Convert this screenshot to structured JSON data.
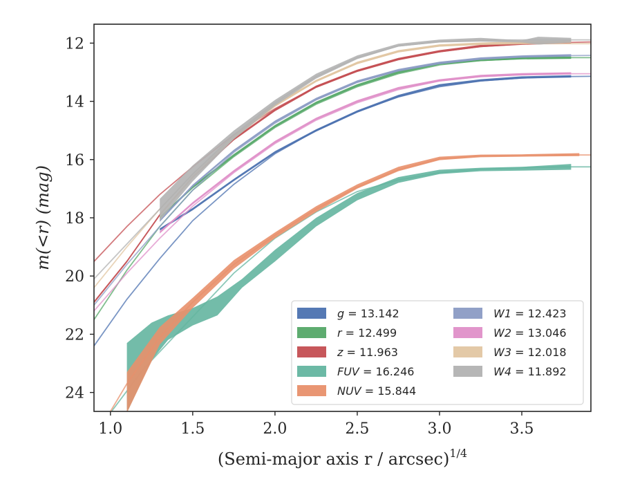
{
  "chart_data": {
    "type": "line",
    "xlabel": "(Semi-major axis r / arcsec)",
    "xlabel_superscript": "1/4",
    "ylabel": "m(<r) (mag)",
    "xlim": [
      0.9,
      3.92
    ],
    "ylim": [
      24.65,
      11.35
    ],
    "y_inverted": true,
    "grid": false,
    "legend_position": "lower-right",
    "x_ticks": [
      "1.0",
      "1.5",
      "2.0",
      "2.5",
      "3.0",
      "3.5"
    ],
    "x_tick_values": [
      1.0,
      1.5,
      2.0,
      2.5,
      3.0,
      3.5
    ],
    "y_ticks": [
      "12",
      "14",
      "16",
      "18",
      "20",
      "22",
      "24"
    ],
    "y_tick_values": [
      12,
      14,
      16,
      18,
      20,
      22,
      24
    ],
    "series": [
      {
        "name": "g",
        "label": "g = 13.142",
        "color": "#4c72b0",
        "fit": [
          [
            0.9,
            22.4
          ],
          [
            1.1,
            20.8
          ],
          [
            1.3,
            19.4
          ],
          [
            1.5,
            18.1
          ],
          [
            1.75,
            16.85
          ],
          [
            2.0,
            15.8
          ],
          [
            2.25,
            15.0
          ],
          [
            2.5,
            14.35
          ],
          [
            2.75,
            13.85
          ],
          [
            3.0,
            13.5
          ],
          [
            3.25,
            13.3
          ],
          [
            3.5,
            13.2
          ],
          [
            3.75,
            13.15
          ],
          [
            3.92,
            13.14
          ]
        ],
        "data": [
          [
            1.3,
            18.4
          ],
          [
            1.5,
            17.7
          ],
          [
            1.75,
            16.7
          ],
          [
            2.0,
            15.75
          ],
          [
            2.25,
            15.0
          ],
          [
            2.5,
            14.35
          ],
          [
            2.75,
            13.82
          ],
          [
            3.0,
            13.45
          ],
          [
            3.25,
            13.28
          ],
          [
            3.5,
            13.18
          ],
          [
            3.8,
            13.14
          ]
        ],
        "data_width": 0.08
      },
      {
        "name": "r",
        "label": "r = 12.499",
        "color": "#55a868",
        "fit": [
          [
            0.9,
            21.5
          ],
          [
            1.1,
            19.8
          ],
          [
            1.3,
            18.3
          ],
          [
            1.5,
            17.05
          ],
          [
            1.75,
            15.9
          ],
          [
            2.0,
            14.9
          ],
          [
            2.25,
            14.1
          ],
          [
            2.5,
            13.5
          ],
          [
            2.75,
            13.05
          ],
          [
            3.0,
            12.75
          ],
          [
            3.25,
            12.6
          ],
          [
            3.5,
            12.53
          ],
          [
            3.75,
            12.5
          ],
          [
            3.92,
            12.5
          ]
        ],
        "data": [
          [
            1.3,
            18.0
          ],
          [
            1.5,
            16.95
          ],
          [
            1.75,
            15.85
          ],
          [
            2.0,
            14.85
          ],
          [
            2.25,
            14.05
          ],
          [
            2.5,
            13.45
          ],
          [
            2.75,
            13.0
          ],
          [
            3.0,
            12.7
          ],
          [
            3.25,
            12.58
          ],
          [
            3.5,
            12.52
          ],
          [
            3.8,
            12.5
          ]
        ],
        "data_width": 0.08
      },
      {
        "name": "z",
        "label": "z = 11.963",
        "color": "#c44e52",
        "fit": [
          [
            0.9,
            19.5
          ],
          [
            1.1,
            18.3
          ],
          [
            1.3,
            17.2
          ],
          [
            1.5,
            16.25
          ],
          [
            1.75,
            15.15
          ],
          [
            2.0,
            14.25
          ],
          [
            2.25,
            13.5
          ],
          [
            2.5,
            12.95
          ],
          [
            2.75,
            12.55
          ],
          [
            3.0,
            12.3
          ],
          [
            3.25,
            12.12
          ],
          [
            3.5,
            12.03
          ],
          [
            3.75,
            11.98
          ],
          [
            3.92,
            11.96
          ]
        ],
        "data": [
          [
            0.9,
            20.9
          ],
          [
            1.1,
            19.5
          ],
          [
            1.3,
            17.9
          ],
          [
            1.5,
            16.6
          ],
          [
            1.75,
            15.3
          ],
          [
            2.0,
            14.3
          ],
          [
            2.25,
            13.5
          ],
          [
            2.5,
            12.95
          ],
          [
            2.75,
            12.55
          ],
          [
            3.0,
            12.28
          ],
          [
            3.25,
            12.1
          ],
          [
            3.5,
            12.02
          ],
          [
            3.8,
            11.97
          ]
        ],
        "data_width": 0.08
      },
      {
        "name": "FUV",
        "label": "FUV = 16.246",
        "color": "#64b5a0",
        "fit": [
          [
            1.0,
            24.7
          ],
          [
            1.2,
            23.2
          ],
          [
            1.5,
            21.4
          ],
          [
            1.75,
            19.9
          ],
          [
            2.0,
            18.7
          ],
          [
            2.25,
            17.8
          ],
          [
            2.5,
            17.1
          ],
          [
            2.75,
            16.7
          ],
          [
            3.0,
            16.45
          ],
          [
            3.25,
            16.33
          ],
          [
            3.5,
            16.28
          ],
          [
            3.75,
            16.25
          ],
          [
            3.92,
            16.25
          ]
        ],
        "band_upper": [
          [
            1.1,
            22.3
          ],
          [
            1.25,
            21.6
          ],
          [
            1.35,
            21.35
          ],
          [
            1.5,
            21.1
          ],
          [
            1.65,
            20.7
          ],
          [
            1.8,
            20.1
          ],
          [
            2.0,
            19.1
          ],
          [
            2.25,
            18.0
          ],
          [
            2.5,
            17.15
          ],
          [
            2.75,
            16.6
          ],
          [
            3.0,
            16.35
          ],
          [
            3.25,
            16.28
          ],
          [
            3.5,
            16.25
          ],
          [
            3.8,
            16.15
          ]
        ],
        "band_lower": [
          [
            1.1,
            24.7
          ],
          [
            1.25,
            22.9
          ],
          [
            1.35,
            22.2
          ],
          [
            1.5,
            21.7
          ],
          [
            1.65,
            21.35
          ],
          [
            1.8,
            20.4
          ],
          [
            2.0,
            19.5
          ],
          [
            2.25,
            18.3
          ],
          [
            2.5,
            17.4
          ],
          [
            2.75,
            16.8
          ],
          [
            3.0,
            16.5
          ],
          [
            3.25,
            16.4
          ],
          [
            3.5,
            16.38
          ],
          [
            3.8,
            16.35
          ]
        ]
      },
      {
        "name": "NUV",
        "label": "NUV = 15.844",
        "color": "#e8906c",
        "fit": [
          [
            0.9,
            25.6
          ],
          [
            1.1,
            23.7
          ],
          [
            1.3,
            22.1
          ],
          [
            1.5,
            20.9
          ],
          [
            1.75,
            19.6
          ],
          [
            2.0,
            18.6
          ],
          [
            2.25,
            17.7
          ],
          [
            2.5,
            16.95
          ],
          [
            2.75,
            16.35
          ],
          [
            3.0,
            15.98
          ],
          [
            3.25,
            15.88
          ],
          [
            3.5,
            15.85
          ],
          [
            3.75,
            15.84
          ],
          [
            3.92,
            15.84
          ]
        ],
        "band_upper": [
          [
            1.1,
            23.3
          ],
          [
            1.3,
            21.75
          ],
          [
            1.5,
            20.75
          ],
          [
            1.75,
            19.45
          ],
          [
            2.0,
            18.5
          ],
          [
            2.25,
            17.6
          ],
          [
            2.5,
            16.85
          ],
          [
            2.75,
            16.25
          ],
          [
            3.0,
            15.9
          ],
          [
            3.25,
            15.83
          ],
          [
            3.5,
            15.82
          ],
          [
            3.85,
            15.78
          ]
        ],
        "band_lower": [
          [
            1.1,
            24.7
          ],
          [
            1.3,
            22.35
          ],
          [
            1.5,
            21.1
          ],
          [
            1.75,
            19.75
          ],
          [
            2.0,
            18.7
          ],
          [
            2.25,
            17.8
          ],
          [
            2.5,
            17.0
          ],
          [
            2.75,
            16.4
          ],
          [
            3.0,
            16.02
          ],
          [
            3.25,
            15.92
          ],
          [
            3.5,
            15.9
          ],
          [
            3.85,
            15.88
          ]
        ]
      },
      {
        "name": "W1",
        "label": "W1 = 12.423",
        "color": "#8b9bc4",
        "fit": [
          [
            0.9,
            21.0
          ],
          [
            1.1,
            19.6
          ],
          [
            1.3,
            18.3
          ],
          [
            1.5,
            17.05
          ],
          [
            1.75,
            15.75
          ],
          [
            2.0,
            14.75
          ],
          [
            2.25,
            13.95
          ],
          [
            2.5,
            13.35
          ],
          [
            2.75,
            12.95
          ],
          [
            3.0,
            12.7
          ],
          [
            3.25,
            12.55
          ],
          [
            3.5,
            12.47
          ],
          [
            3.75,
            12.43
          ],
          [
            3.92,
            12.42
          ]
        ],
        "data": [
          [
            1.3,
            18.1
          ],
          [
            1.5,
            16.9
          ],
          [
            1.75,
            15.7
          ],
          [
            2.0,
            14.7
          ],
          [
            2.25,
            13.92
          ],
          [
            2.5,
            13.32
          ],
          [
            2.75,
            12.93
          ],
          [
            3.0,
            12.68
          ],
          [
            3.25,
            12.53
          ],
          [
            3.5,
            12.46
          ],
          [
            3.8,
            12.42
          ]
        ],
        "data_width": 0.08
      },
      {
        "name": "W2",
        "label": "W2 = 13.046",
        "color": "#df8fc8",
        "fit": [
          [
            0.9,
            21.2
          ],
          [
            1.1,
            19.9
          ],
          [
            1.3,
            18.7
          ],
          [
            1.5,
            17.6
          ],
          [
            1.75,
            16.45
          ],
          [
            2.0,
            15.45
          ],
          [
            2.25,
            14.65
          ],
          [
            2.5,
            14.05
          ],
          [
            2.75,
            13.6
          ],
          [
            3.0,
            13.3
          ],
          [
            3.25,
            13.15
          ],
          [
            3.5,
            13.08
          ],
          [
            3.75,
            13.05
          ],
          [
            3.92,
            13.05
          ]
        ],
        "data": [
          [
            1.3,
            18.5
          ],
          [
            1.5,
            17.5
          ],
          [
            1.75,
            16.4
          ],
          [
            2.0,
            15.4
          ],
          [
            2.25,
            14.6
          ],
          [
            2.5,
            14.0
          ],
          [
            2.75,
            13.55
          ],
          [
            3.0,
            13.28
          ],
          [
            3.25,
            13.13
          ],
          [
            3.5,
            13.07
          ],
          [
            3.8,
            13.04
          ]
        ],
        "data_width": 0.08
      },
      {
        "name": "W3",
        "label": "W3 = 12.018",
        "color": "#e2c6a2",
        "fit": [
          [
            0.9,
            20.4
          ],
          [
            1.1,
            19.0
          ],
          [
            1.3,
            17.7
          ],
          [
            1.5,
            16.5
          ],
          [
            1.75,
            15.2
          ],
          [
            2.0,
            14.1
          ],
          [
            2.25,
            13.3
          ],
          [
            2.5,
            12.7
          ],
          [
            2.75,
            12.3
          ],
          [
            3.0,
            12.1
          ],
          [
            3.25,
            12.04
          ],
          [
            3.5,
            12.02
          ],
          [
            3.75,
            12.02
          ],
          [
            3.92,
            12.02
          ]
        ],
        "data": [
          [
            1.3,
            17.9
          ],
          [
            1.5,
            16.6
          ],
          [
            1.75,
            15.25
          ],
          [
            2.0,
            14.15
          ],
          [
            2.25,
            13.3
          ],
          [
            2.5,
            12.68
          ],
          [
            2.75,
            12.28
          ],
          [
            3.0,
            12.08
          ],
          [
            3.25,
            12.02
          ],
          [
            3.5,
            11.98
          ],
          [
            3.8,
            11.95
          ]
        ],
        "data_width": 0.08
      },
      {
        "name": "W4",
        "label": "W4 = 11.892",
        "color": "#b2b2b2",
        "fit": [
          [
            0.9,
            20.1
          ],
          [
            1.1,
            18.9
          ],
          [
            1.3,
            17.7
          ],
          [
            1.5,
            16.5
          ],
          [
            1.75,
            15.15
          ],
          [
            2.0,
            14.05
          ],
          [
            2.25,
            13.15
          ],
          [
            2.5,
            12.5
          ],
          [
            2.75,
            12.1
          ],
          [
            3.0,
            11.95
          ],
          [
            3.25,
            11.9
          ],
          [
            3.5,
            11.89
          ],
          [
            3.75,
            11.89
          ],
          [
            3.92,
            11.89
          ]
        ],
        "band_upper": [
          [
            1.3,
            17.35
          ],
          [
            1.5,
            16.2
          ],
          [
            1.75,
            15.0
          ],
          [
            2.0,
            13.95
          ],
          [
            2.25,
            13.05
          ],
          [
            2.5,
            12.42
          ],
          [
            2.75,
            12.02
          ],
          [
            3.0,
            11.88
          ],
          [
            3.25,
            11.82
          ],
          [
            3.5,
            11.9
          ],
          [
            3.6,
            11.78
          ],
          [
            3.8,
            11.82
          ]
        ],
        "band_lower": [
          [
            1.3,
            18.1
          ],
          [
            1.5,
            16.75
          ],
          [
            1.75,
            15.3
          ],
          [
            2.0,
            14.15
          ],
          [
            2.25,
            13.22
          ],
          [
            2.5,
            12.55
          ],
          [
            2.75,
            12.12
          ],
          [
            3.0,
            11.98
          ],
          [
            3.25,
            11.95
          ],
          [
            3.5,
            11.98
          ],
          [
            3.6,
            12.05
          ],
          [
            3.8,
            11.98
          ]
        ]
      }
    ]
  }
}
